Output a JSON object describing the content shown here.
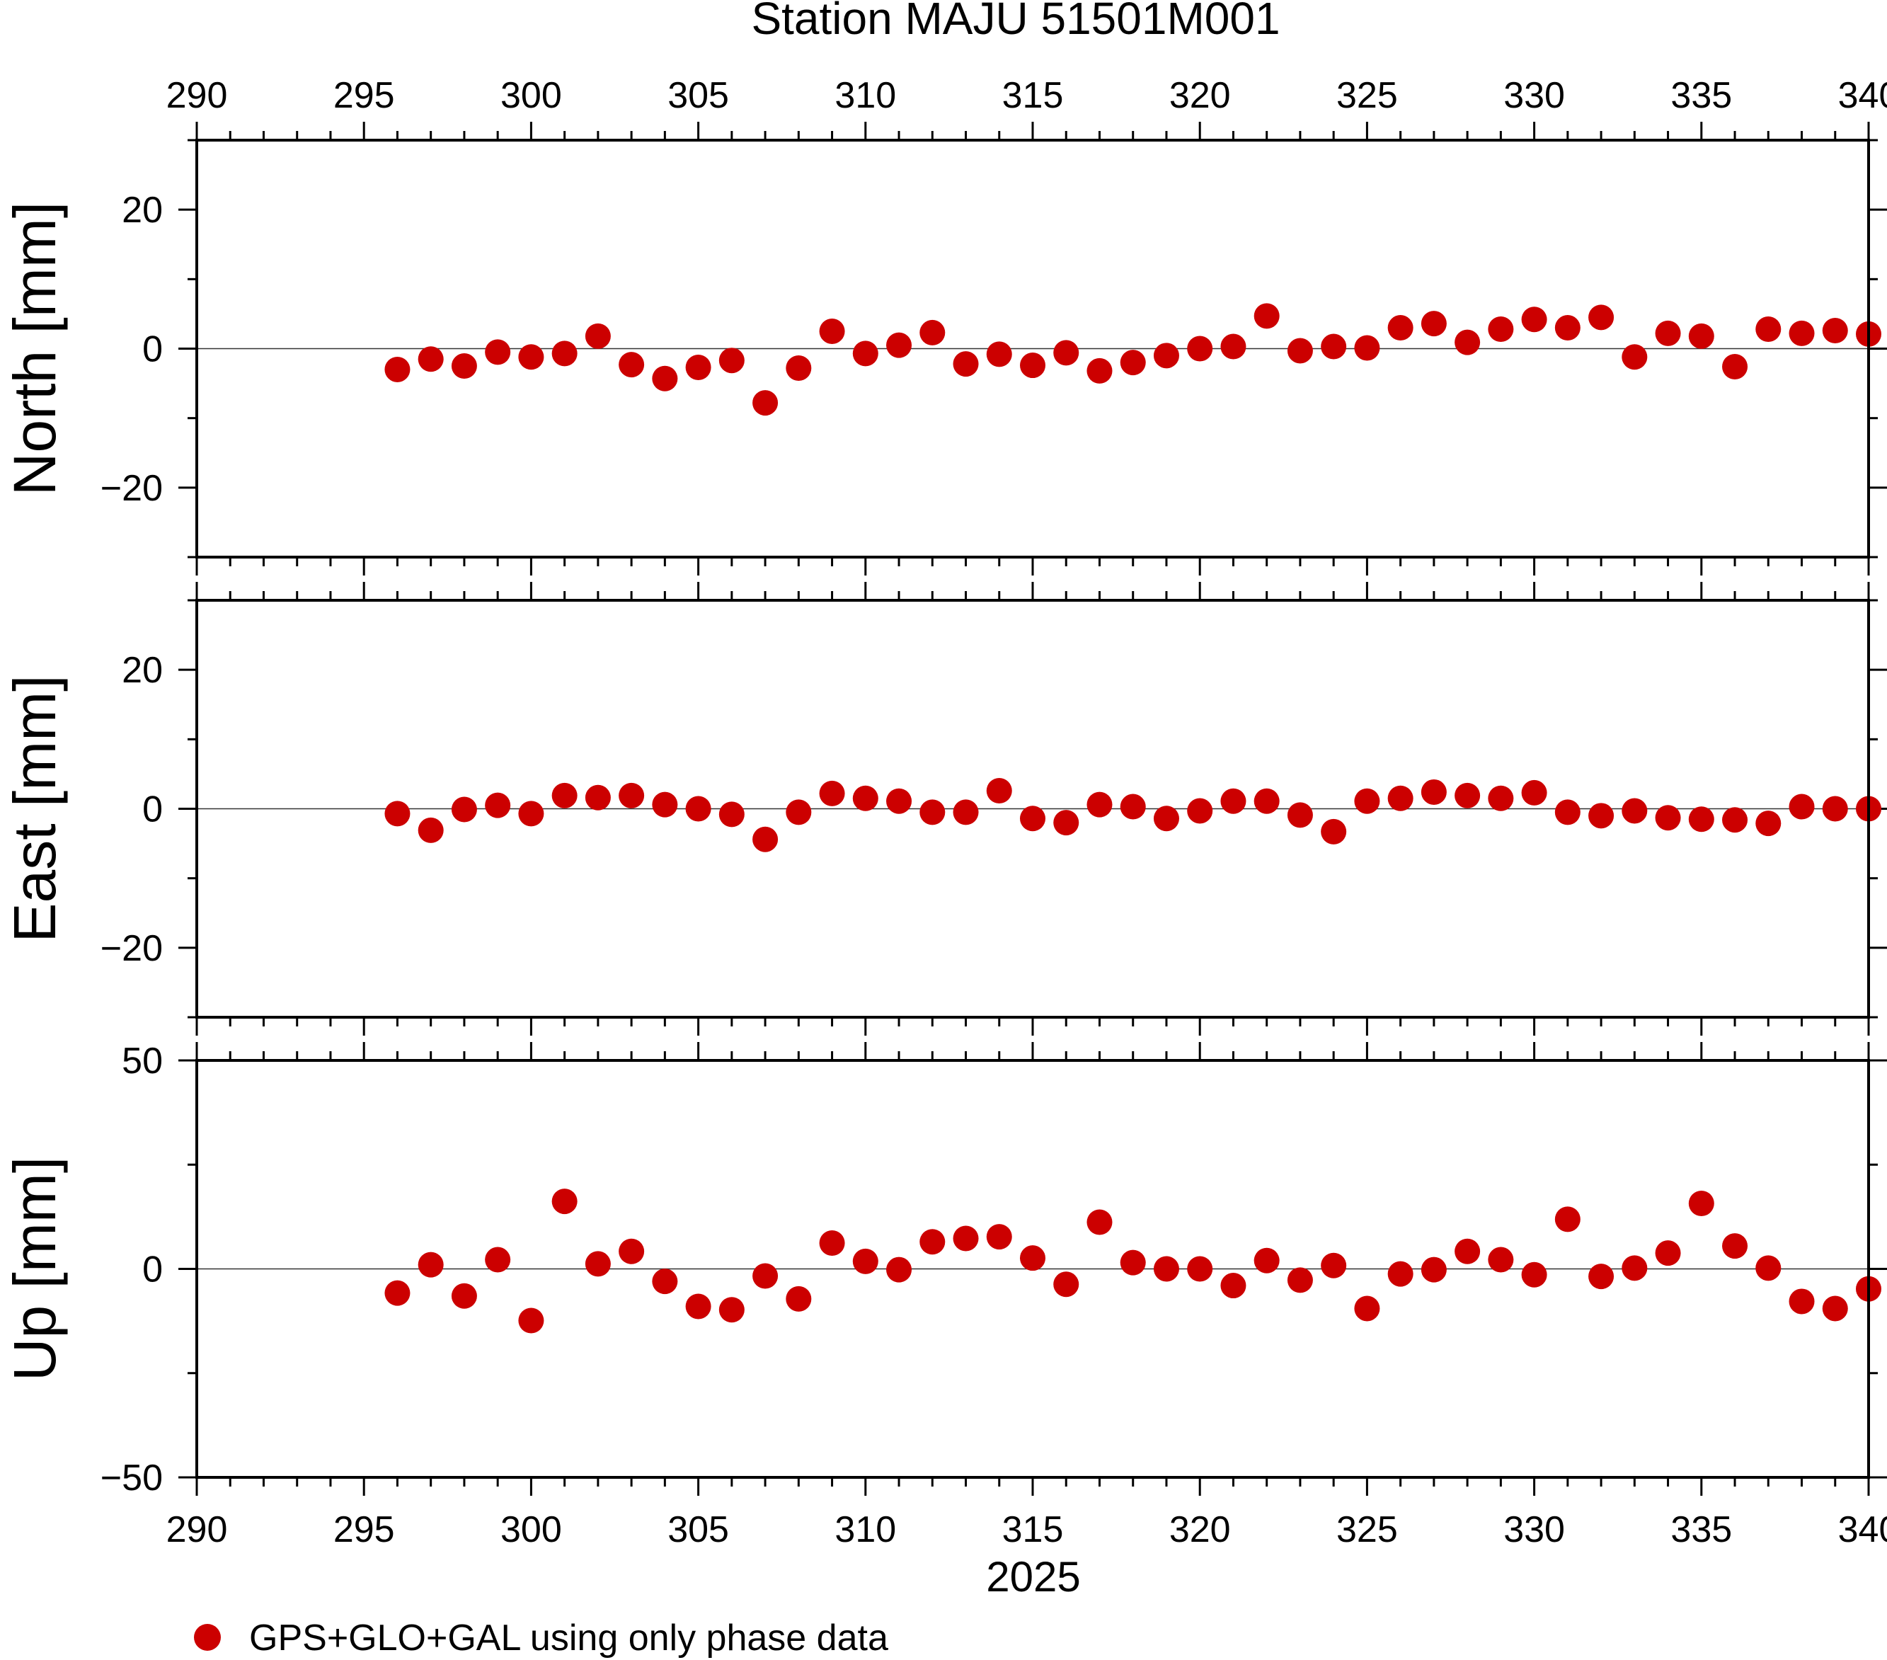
{
  "chart_data": {
    "type": "scatter",
    "title": "Station MAJU 51501M001",
    "xlabel": "2025",
    "xlim": [
      290,
      340
    ],
    "x_ticks": [
      290,
      295,
      300,
      305,
      310,
      315,
      320,
      325,
      330,
      335,
      340
    ],
    "marker_color": "#cc0000",
    "legend": {
      "label": "GPS+GLO+GAL using only phase data",
      "placement": "bottom-left"
    },
    "x": [
      296,
      297,
      298,
      299,
      300,
      301,
      302,
      303,
      304,
      305,
      306,
      307,
      308,
      309,
      310,
      311,
      312,
      313,
      314,
      315,
      316,
      317,
      318,
      319,
      320,
      321,
      322,
      323,
      324,
      325,
      326,
      327,
      328,
      329,
      330,
      331,
      332,
      333,
      334,
      335,
      336,
      337,
      338,
      339,
      340
    ],
    "panels": [
      {
        "ylabel": "North [mm]",
        "ylim": [
          -30,
          30
        ],
        "y_ticks": [
          -20,
          0,
          20
        ],
        "y_tick_labels": [
          "−20",
          "0",
          "20"
        ],
        "values": [
          -3,
          -1.5,
          -2.5,
          -0.5,
          -1.2,
          -0.7,
          1.8,
          -2.3,
          -4.3,
          -2.7,
          -1.7,
          -7.8,
          -2.8,
          2.5,
          -0.7,
          0.5,
          2.3,
          -2.2,
          -0.8,
          -2.4,
          -0.6,
          -3.2,
          -2,
          -1,
          0,
          0.3,
          4.7,
          -0.3,
          0.3,
          0.1,
          3,
          3.6,
          0.9,
          2.8,
          4.2,
          3,
          4.5,
          -1.2,
          2.2,
          1.8,
          -2.6,
          2.8,
          2.2,
          2.6,
          2.1
        ]
      },
      {
        "ylabel": "East [mm]",
        "ylim": [
          -30,
          30
        ],
        "y_ticks": [
          -20,
          0,
          20
        ],
        "y_tick_labels": [
          "−20",
          "0",
          "20"
        ],
        "values": [
          -0.7,
          -3.1,
          -0.1,
          0.5,
          -0.7,
          1.9,
          1.6,
          1.9,
          0.6,
          0,
          -0.8,
          -4.4,
          -0.5,
          2.2,
          1.5,
          1.1,
          -0.5,
          -0.5,
          2.6,
          -1.4,
          -2,
          0.6,
          0.3,
          -1.4,
          -0.3,
          1.1,
          1.1,
          -0.9,
          -3.3,
          1.1,
          1.5,
          2.4,
          1.9,
          1.5,
          2.3,
          -0.5,
          -1,
          -0.3,
          -1.3,
          -1.5,
          -1.6,
          -2.1,
          0.3,
          0,
          0
        ]
      },
      {
        "ylabel": "Up [mm]",
        "ylim": [
          -50,
          50
        ],
        "y_ticks": [
          -50,
          0,
          50
        ],
        "y_tick_labels": [
          "−50",
          "0",
          "50"
        ],
        "values": [
          -5.8,
          1,
          -6.5,
          2.2,
          -12.4,
          16.2,
          1.2,
          4.2,
          -3,
          -9,
          -9.8,
          -1.7,
          -7.2,
          6.2,
          1.8,
          -0.2,
          6.5,
          7.3,
          7.7,
          2.6,
          -3.7,
          11.2,
          1.5,
          0,
          0,
          -4,
          2,
          -2.7,
          0.8,
          -9.5,
          -1.2,
          -0.2,
          4.2,
          2.2,
          -1.4,
          11.9,
          -1.8,
          0.2,
          3.8,
          15.7,
          5.5,
          0.2,
          -7.8,
          -9.5,
          -4.8
        ]
      }
    ]
  }
}
